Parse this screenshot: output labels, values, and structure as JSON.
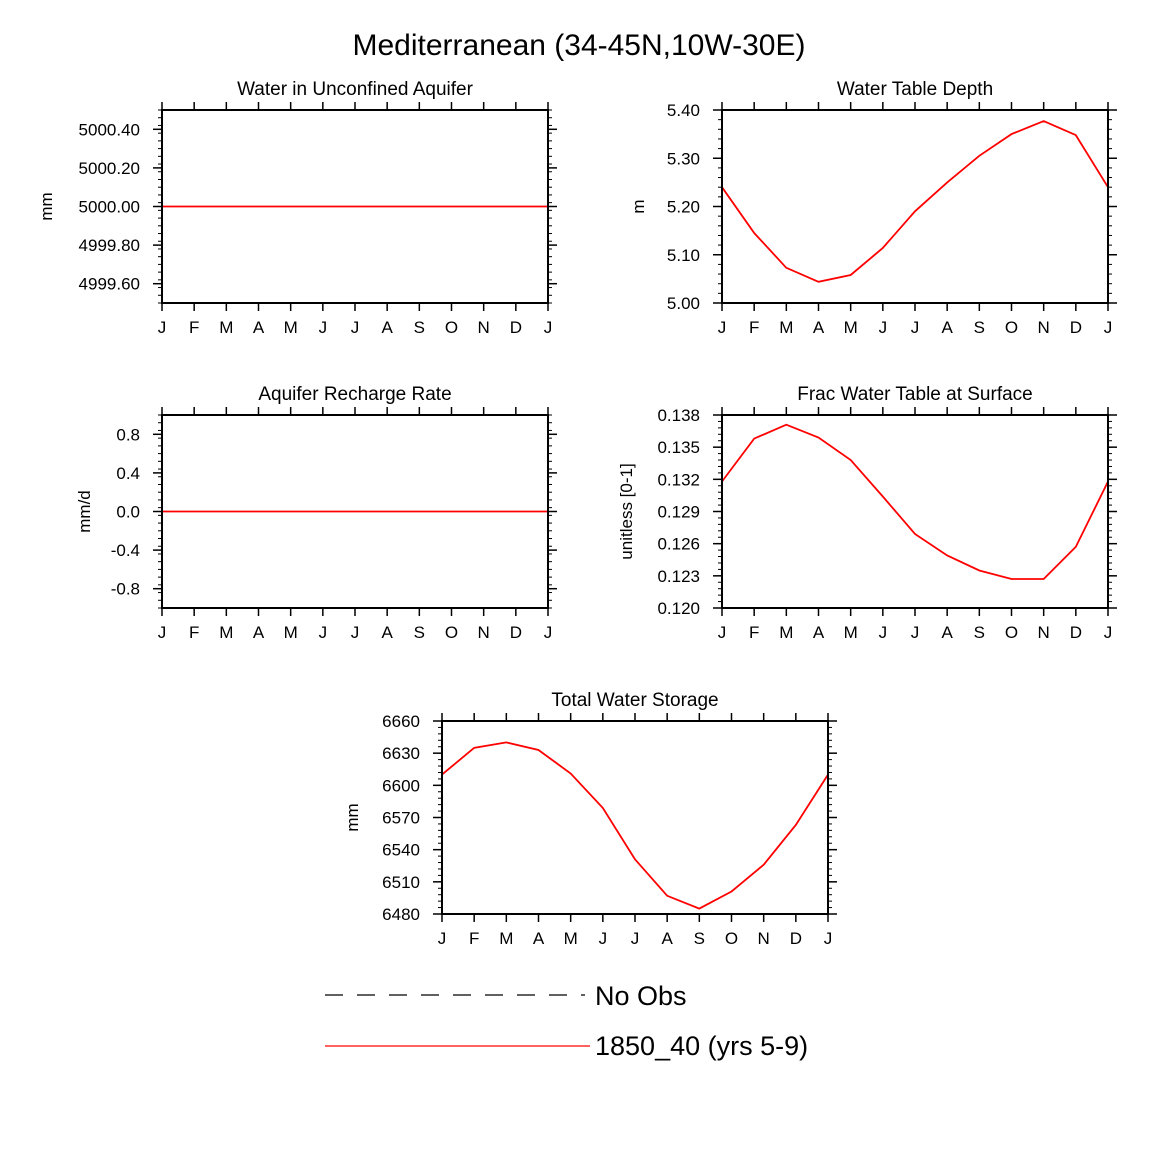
{
  "title": "Mediterranean (34-45N,10W-30E)",
  "colors": {
    "model": "#ff0000",
    "obs": "#000000",
    "axes": "#000000"
  },
  "legend": {
    "placement": "bottom-center",
    "entries": [
      {
        "label": "No Obs",
        "style": "dashed",
        "color": "#000000"
      },
      {
        "label": "1850_40 (yrs 5-9)",
        "style": "solid",
        "color": "#ff0000"
      }
    ]
  },
  "chart_data": [
    {
      "type": "line",
      "title": "Water in Unconfined Aquifer",
      "ylabel": "mm",
      "categories": [
        "J",
        "F",
        "M",
        "A",
        "M",
        "J",
        "J",
        "A",
        "S",
        "O",
        "N",
        "D",
        "J"
      ],
      "ylim": [
        4999.5,
        5000.5
      ],
      "yticks": [
        4999.6,
        4999.8,
        5000.0,
        5000.2,
        5000.4
      ],
      "ytick_labels": [
        "4999.60",
        "4999.80",
        "5000.00",
        "5000.20",
        "5000.40"
      ],
      "series": [
        {
          "values": [
            5000,
            5000,
            5000,
            5000,
            5000,
            5000,
            5000,
            5000,
            5000,
            5000,
            5000,
            5000,
            5000
          ]
        }
      ]
    },
    {
      "type": "line",
      "title": "Water Table Depth",
      "ylabel": "m",
      "categories": [
        "J",
        "F",
        "M",
        "A",
        "M",
        "J",
        "J",
        "A",
        "S",
        "O",
        "N",
        "D",
        "J"
      ],
      "ylim": [
        5.0,
        5.4
      ],
      "yticks": [
        5.0,
        5.1,
        5.2,
        5.3,
        5.4
      ],
      "ytick_labels": [
        "5.00",
        "5.10",
        "5.20",
        "5.30",
        "5.40"
      ],
      "series": [
        {
          "values": [
            5.24,
            5.145,
            5.073,
            5.044,
            5.058,
            5.114,
            5.19,
            5.25,
            5.305,
            5.35,
            5.377,
            5.348,
            5.24
          ]
        }
      ]
    },
    {
      "type": "line",
      "title": "Aquifer Recharge Rate",
      "ylabel": "mm/d",
      "categories": [
        "J",
        "F",
        "M",
        "A",
        "M",
        "J",
        "J",
        "A",
        "S",
        "O",
        "N",
        "D",
        "J"
      ],
      "ylim": [
        -1.0,
        1.0
      ],
      "yticks": [
        -0.8,
        -0.4,
        0.0,
        0.4,
        0.8
      ],
      "ytick_labels": [
        "-0.8",
        "-0.4",
        "0.0",
        "0.4",
        "0.8"
      ],
      "series": [
        {
          "values": [
            0,
            0,
            0,
            0,
            0,
            0,
            0,
            0,
            0,
            0,
            0,
            0,
            0
          ]
        }
      ]
    },
    {
      "type": "line",
      "title": "Frac Water Table at Surface",
      "ylabel": "unitless [0-1]",
      "categories": [
        "J",
        "F",
        "M",
        "A",
        "M",
        "J",
        "J",
        "A",
        "S",
        "O",
        "N",
        "D",
        "J"
      ],
      "ylim": [
        0.12,
        0.138
      ],
      "yticks": [
        0.12,
        0.123,
        0.126,
        0.129,
        0.132,
        0.135,
        0.138
      ],
      "ytick_labels": [
        "0.120",
        "0.123",
        "0.126",
        "0.129",
        "0.132",
        "0.135",
        "0.138"
      ],
      "series": [
        {
          "values": [
            0.1318,
            0.1358,
            0.1371,
            0.1359,
            0.1338,
            0.1304,
            0.1269,
            0.1249,
            0.1235,
            0.1227,
            0.1227,
            0.1257,
            0.1318
          ]
        }
      ]
    },
    {
      "type": "line",
      "title": "Total Water Storage",
      "ylabel": "mm",
      "categories": [
        "J",
        "F",
        "M",
        "A",
        "M",
        "J",
        "J",
        "A",
        "S",
        "O",
        "N",
        "D",
        "J"
      ],
      "ylim": [
        6480,
        6660
      ],
      "yticks": [
        6480,
        6510,
        6540,
        6570,
        6600,
        6630,
        6660
      ],
      "ytick_labels": [
        "6480",
        "6510",
        "6540",
        "6570",
        "6600",
        "6630",
        "6660"
      ],
      "series": [
        {
          "values": [
            6610,
            6635,
            6640,
            6633,
            6611,
            6579,
            6531,
            6497,
            6485,
            6501,
            6526,
            6563,
            6610
          ]
        }
      ]
    }
  ]
}
